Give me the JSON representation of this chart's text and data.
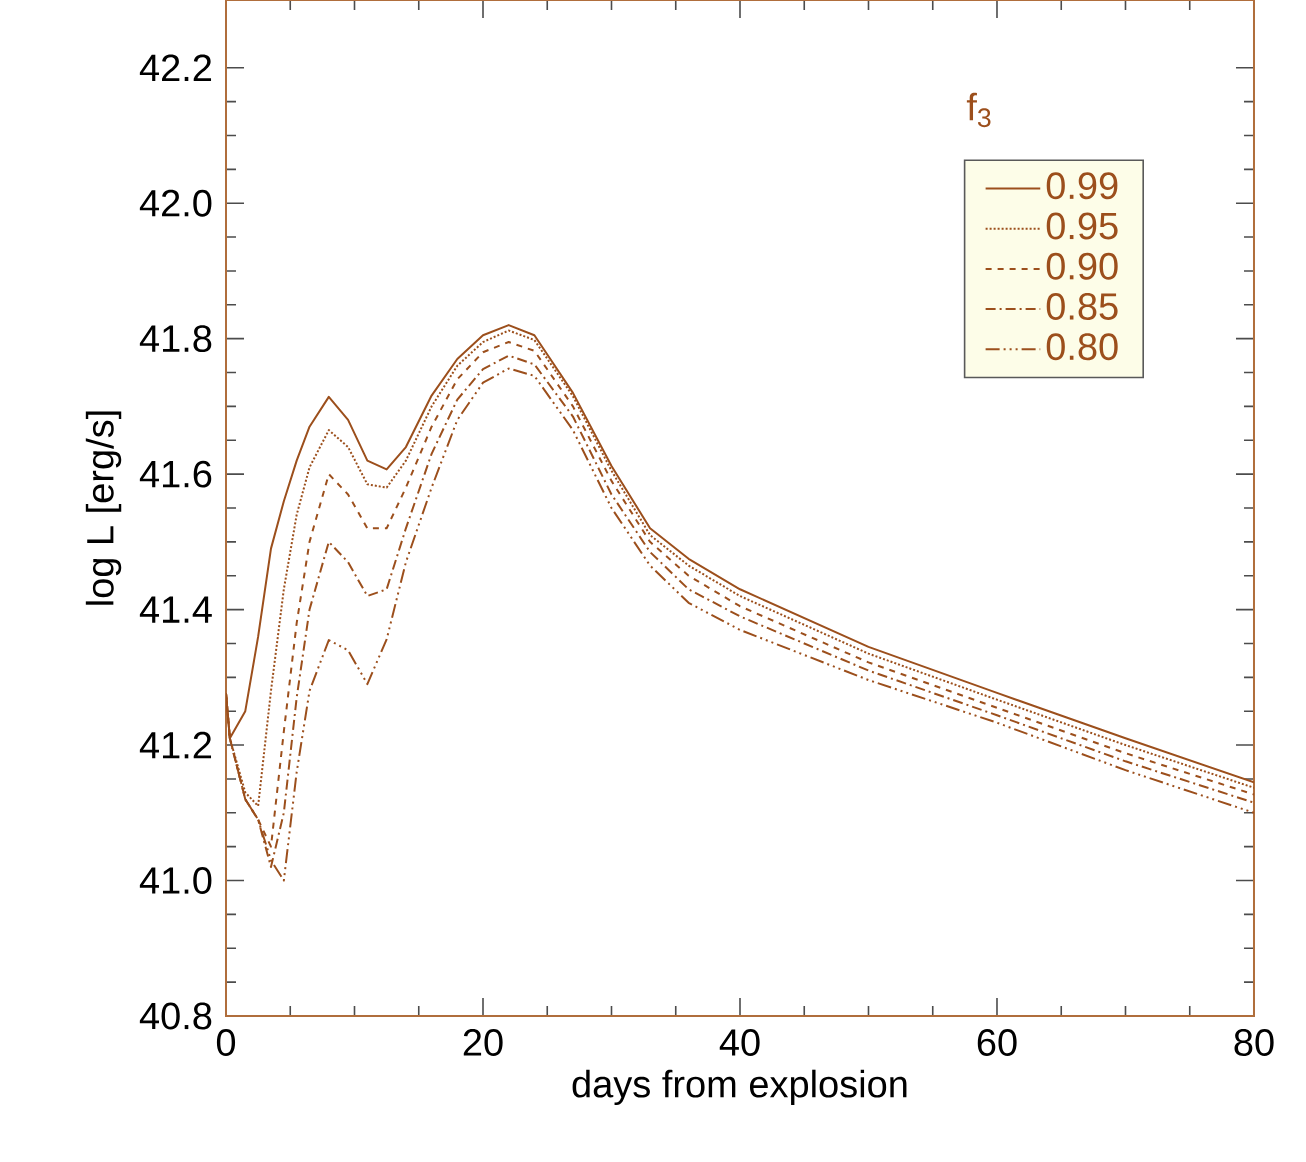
{
  "chart_data": {
    "type": "line",
    "xlabel": "days from explosion",
    "ylabel": "log L [erg/s]",
    "legend_title": "f$_{3}$",
    "legend": "top right",
    "xlim": [
      0,
      80
    ],
    "xticks": [
      0,
      20,
      40,
      60,
      80
    ],
    "ylim": [
      40.8,
      42.3
    ],
    "yticks": [
      40.8,
      {
        "value": 41.0,
        "label": "41.0"
      },
      41.2,
      41.4,
      41.6,
      41.8,
      {
        "value": 42.0,
        "label": "42.0"
      },
      42.2
    ],
    "grid": false,
    "marker": "none",
    "x": [
      0,
      0.3,
      1.5,
      2.5,
      3.5,
      4.5,
      5.5,
      6.5,
      8,
      9.5,
      11,
      12.5,
      14,
      16,
      18,
      20,
      22,
      24,
      27,
      30,
      33,
      36,
      40,
      50,
      60,
      70,
      80
    ],
    "series": [
      {
        "name": "0.99",
        "color": "#9c4f1c",
        "line_style": "solid",
        "values": [
          41.276,
          41.21,
          41.25,
          41.36,
          41.49,
          41.56,
          41.62,
          41.67,
          41.714,
          41.68,
          41.62,
          41.607,
          41.64,
          41.716,
          41.77,
          41.805,
          41.82,
          41.805,
          41.72,
          41.612,
          41.52,
          41.475,
          41.43,
          41.345,
          41.277,
          41.21,
          41.145
        ]
      },
      {
        "name": "0.95",
        "color": "#9c4f1c",
        "line_style": "dotted",
        "values": [
          41.276,
          41.21,
          41.13,
          41.11,
          41.28,
          41.43,
          41.54,
          41.61,
          41.665,
          41.64,
          41.585,
          41.58,
          41.62,
          41.7,
          41.76,
          41.795,
          41.812,
          41.798,
          41.715,
          41.605,
          41.51,
          41.465,
          41.42,
          41.335,
          41.267,
          41.2,
          41.137
        ]
      },
      {
        "name": "0.90",
        "color": "#9c4f1c",
        "line_style": "dashed",
        "values": [
          41.276,
          41.21,
          41.12,
          41.09,
          41.05,
          41.22,
          41.38,
          41.5,
          41.6,
          41.57,
          41.52,
          41.52,
          41.58,
          41.67,
          41.74,
          41.78,
          41.795,
          41.782,
          41.7,
          41.59,
          41.5,
          41.45,
          41.405,
          41.322,
          41.255,
          41.188,
          41.127
        ]
      },
      {
        "name": "0.85",
        "color": "#9c4f1c",
        "line_style": "dashdot",
        "values": [
          41.276,
          41.21,
          41.12,
          41.09,
          41.02,
          41.1,
          41.27,
          41.4,
          41.5,
          41.47,
          41.42,
          41.43,
          41.52,
          41.63,
          41.71,
          41.755,
          41.775,
          41.762,
          41.685,
          41.57,
          41.485,
          41.43,
          41.39,
          41.31,
          41.244,
          41.176,
          41.115
        ]
      },
      {
        "name": "0.80",
        "color": "#9c4f1c",
        "line_style": "dashdotdot",
        "values": [
          41.276,
          41.21,
          41.12,
          41.09,
          41.03,
          41.0,
          41.16,
          41.28,
          41.355,
          41.34,
          41.29,
          41.356,
          41.47,
          41.58,
          41.68,
          41.735,
          41.756,
          41.745,
          41.665,
          41.55,
          41.465,
          41.41,
          41.37,
          41.296,
          41.233,
          41.163,
          41.1
        ]
      }
    ]
  }
}
